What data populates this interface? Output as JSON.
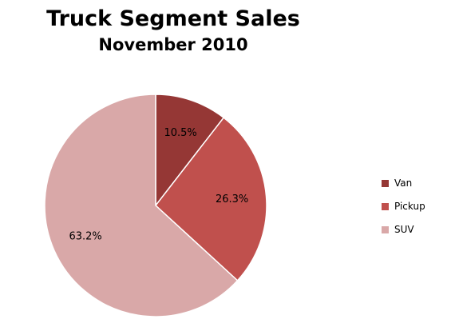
{
  "chart_data": {
    "type": "pie",
    "title": "Truck Segment Sales",
    "subtitle": "November 2010",
    "categories": [
      "Van",
      "Pickup",
      "SUV"
    ],
    "values": [
      10.5,
      26.3,
      63.2
    ],
    "labels": [
      "10.5%",
      "26.3%",
      "63.2%"
    ],
    "colors": [
      "#953735",
      "#c0504d",
      "#d9a8a8"
    ],
    "legend_position": "right"
  }
}
